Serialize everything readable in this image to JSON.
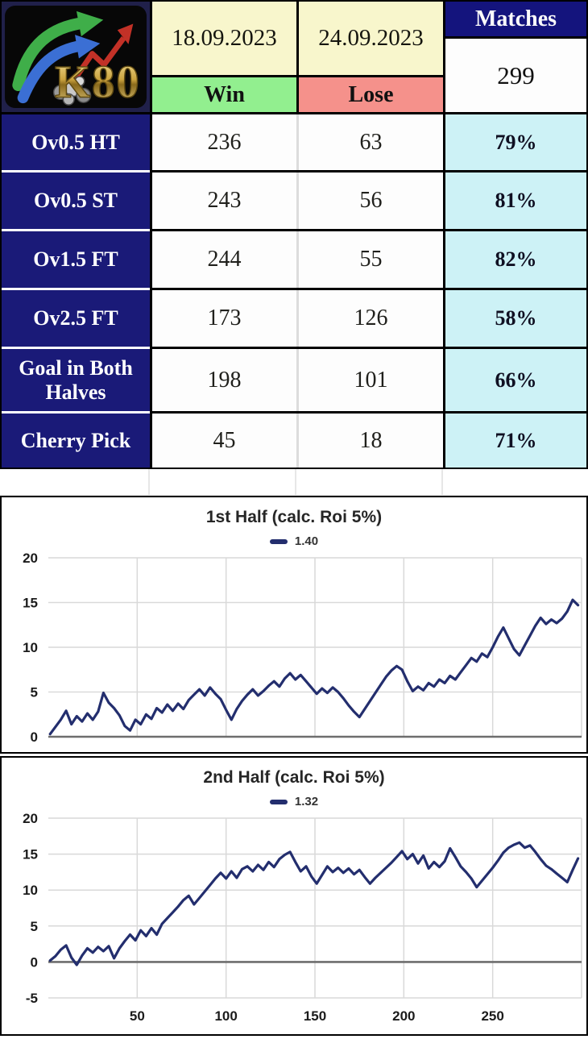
{
  "brand": {
    "logo_text": "K80"
  },
  "table": {
    "date_from": "18.09.2023",
    "date_to": "24.09.2023",
    "col_win": "Win",
    "col_lose": "Lose",
    "col_matches": "Matches",
    "matches_total": "299",
    "rows": [
      {
        "label": "Ov0.5 HT",
        "win": "236",
        "lose": "63",
        "pct": "79%"
      },
      {
        "label": "Ov0.5 ST",
        "win": "243",
        "lose": "56",
        "pct": "81%"
      },
      {
        "label": "Ov1.5 FT",
        "win": "244",
        "lose": "55",
        "pct": "82%"
      },
      {
        "label": "Ov2.5 FT",
        "win": "173",
        "lose": "126",
        "pct": "58%"
      },
      {
        "label": "Goal in Both Halves",
        "win": "198",
        "lose": "101",
        "pct": "66%"
      },
      {
        "label": "Cherry Pick",
        "win": "45",
        "lose": "18",
        "pct": "71%"
      }
    ]
  },
  "colors": {
    "navy_cell": "#1a1a78",
    "navy_header": "#14147d",
    "cream": "#f8f6cc",
    "green": "#92ef8f",
    "salmon": "#f5918b",
    "cyan": "#cdf2f6",
    "line": "#232e6e",
    "grid": "#d9d9d9",
    "zero_line": "#6e6e6e",
    "logo_gold": "#d9b85c",
    "logo_green_arrow": "#3fae49",
    "logo_blue_arrow": "#3b6fd4",
    "logo_red_arrow": "#c23127"
  },
  "chart_data": [
    {
      "type": "line",
      "title": "1st Half (calc. Roi 5%)",
      "legend_label": "1.40",
      "xlim": [
        0,
        300
      ],
      "ylim": [
        0,
        20
      ],
      "yticks": [
        0,
        5,
        10,
        15,
        20
      ],
      "xticks": [],
      "x_gridlines": [
        50,
        100,
        150,
        200,
        250,
        300
      ],
      "grid": true,
      "legend_position": "top",
      "dark_line_at": 0,
      "x": [
        1,
        4,
        7,
        10,
        13,
        16,
        19,
        22,
        25,
        28,
        31,
        34,
        37,
        40,
        43,
        46,
        49,
        52,
        55,
        58,
        61,
        64,
        67,
        70,
        73,
        76,
        79,
        82,
        85,
        88,
        91,
        94,
        97,
        100,
        103,
        106,
        109,
        112,
        115,
        118,
        121,
        124,
        127,
        130,
        133,
        136,
        139,
        142,
        145,
        148,
        151,
        154,
        157,
        160,
        163,
        166,
        169,
        172,
        175,
        178,
        181,
        184,
        187,
        190,
        193,
        196,
        199,
        202,
        205,
        208,
        211,
        214,
        217,
        220,
        223,
        226,
        229,
        232,
        235,
        238,
        241,
        244,
        247,
        250,
        253,
        256,
        259,
        262,
        265,
        268,
        271,
        274,
        277,
        280,
        283,
        286,
        289,
        292,
        295,
        298
      ],
      "values": [
        0.3,
        1.1,
        1.9,
        2.9,
        1.4,
        2.3,
        1.7,
        2.6,
        1.9,
        2.8,
        4.9,
        3.8,
        3.2,
        2.4,
        1.2,
        0.7,
        1.9,
        1.4,
        2.5,
        2.0,
        3.2,
        2.7,
        3.6,
        2.9,
        3.7,
        3.1,
        4.1,
        4.7,
        5.3,
        4.6,
        5.5,
        4.8,
        4.2,
        3.0,
        1.9,
        3.1,
        4.0,
        4.7,
        5.3,
        4.6,
        5.1,
        5.7,
        6.2,
        5.6,
        6.5,
        7.1,
        6.4,
        6.9,
        6.2,
        5.5,
        4.8,
        5.4,
        4.9,
        5.5,
        5.0,
        4.3,
        3.5,
        2.8,
        2.2,
        3.1,
        4.0,
        4.9,
        5.8,
        6.7,
        7.4,
        7.9,
        7.5,
        6.2,
        5.1,
        5.6,
        5.2,
        6.0,
        5.6,
        6.4,
        6.0,
        6.8,
        6.4,
        7.2,
        8.0,
        8.8,
        8.4,
        9.3,
        8.9,
        10.0,
        11.2,
        12.2,
        11.0,
        9.8,
        9.1,
        10.2,
        11.3,
        12.4,
        13.3,
        12.6,
        13.1,
        12.7,
        13.2,
        14.0,
        15.3,
        14.7
      ]
    },
    {
      "type": "line",
      "title": "2nd Half (calc. Roi 5%)",
      "legend_label": "1.32",
      "xlim": [
        0,
        300
      ],
      "ylim": [
        -5,
        20
      ],
      "yticks": [
        -5,
        0,
        5,
        10,
        15,
        20
      ],
      "xticks": [
        50,
        100,
        150,
        200,
        250
      ],
      "x_gridlines": [
        50,
        100,
        150,
        200,
        250,
        300
      ],
      "grid": true,
      "legend_position": "top",
      "dark_line_at": 0,
      "x": [
        1,
        4,
        7,
        10,
        13,
        16,
        19,
        22,
        25,
        28,
        31,
        34,
        37,
        40,
        43,
        46,
        49,
        52,
        55,
        58,
        61,
        64,
        67,
        70,
        73,
        76,
        79,
        82,
        85,
        88,
        91,
        94,
        97,
        100,
        103,
        106,
        109,
        112,
        115,
        118,
        121,
        124,
        127,
        130,
        133,
        136,
        139,
        142,
        145,
        148,
        151,
        154,
        157,
        160,
        163,
        166,
        169,
        172,
        175,
        178,
        181,
        184,
        187,
        190,
        193,
        196,
        199,
        202,
        205,
        208,
        211,
        214,
        217,
        220,
        223,
        226,
        229,
        232,
        235,
        238,
        241,
        244,
        247,
        250,
        253,
        256,
        259,
        262,
        265,
        268,
        271,
        274,
        277,
        280,
        283,
        286,
        289,
        292,
        295,
        298
      ],
      "values": [
        0.2,
        0.8,
        1.7,
        2.3,
        0.6,
        -0.4,
        0.9,
        1.9,
        1.3,
        2.1,
        1.5,
        2.2,
        0.5,
        1.9,
        2.9,
        3.8,
        3.0,
        4.4,
        3.6,
        4.7,
        3.8,
        5.3,
        6.1,
        6.9,
        7.7,
        8.6,
        9.2,
        8.0,
        8.9,
        9.8,
        10.7,
        11.6,
        12.4,
        11.6,
        12.6,
        11.7,
        12.9,
        13.3,
        12.6,
        13.5,
        12.8,
        13.9,
        13.2,
        14.3,
        14.9,
        15.3,
        13.9,
        12.6,
        13.3,
        11.9,
        10.9,
        12.1,
        13.3,
        12.5,
        13.1,
        12.4,
        13.0,
        12.2,
        12.8,
        11.8,
        10.9,
        11.7,
        12.4,
        13.1,
        13.8,
        14.6,
        15.4,
        14.3,
        15.0,
        13.7,
        14.8,
        13.0,
        13.9,
        13.2,
        14.0,
        15.8,
        14.6,
        13.3,
        12.5,
        11.6,
        10.4,
        11.3,
        12.2,
        13.1,
        14.1,
        15.2,
        15.9,
        16.3,
        16.6,
        15.9,
        16.2,
        15.3,
        14.3,
        13.4,
        12.9,
        12.3,
        11.7,
        11.1,
        12.8,
        14.4
      ]
    }
  ]
}
